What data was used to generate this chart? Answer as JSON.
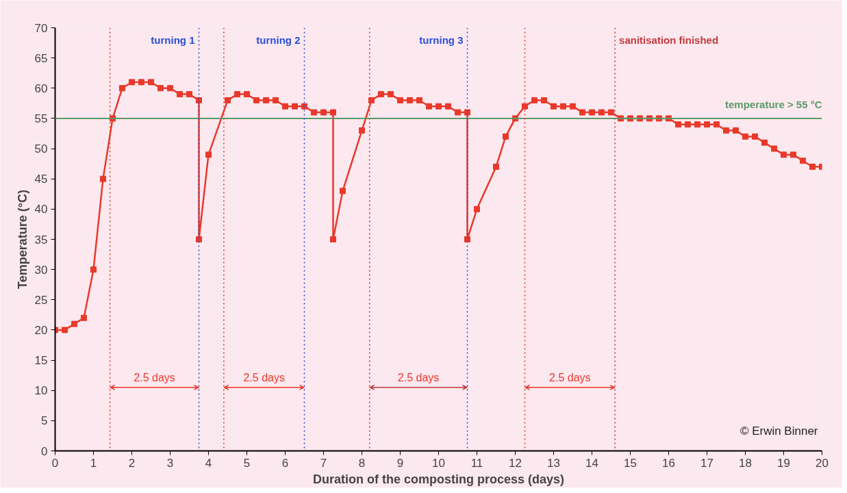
{
  "chart_data": {
    "type": "line",
    "xlabel": "Duration of the composting process (days)",
    "ylabel": "Temperature (°C)",
    "x": [
      0,
      0.25,
      0.5,
      0.75,
      1,
      1.25,
      1.5,
      1.75,
      2,
      2.25,
      2.5,
      2.75,
      3,
      3.25,
      3.5,
      3.75,
      3.75,
      4,
      4.5,
      4.75,
      5,
      5.25,
      5.5,
      5.75,
      6,
      6.25,
      6.5,
      6.75,
      7,
      7.25,
      7.25,
      7.5,
      8,
      8.25,
      8.5,
      8.75,
      9,
      9.25,
      9.5,
      9.75,
      10,
      10.25,
      10.5,
      10.75,
      10.75,
      11,
      11.5,
      11.75,
      12,
      12.25,
      12.5,
      12.75,
      13,
      13.25,
      13.5,
      13.75,
      14,
      14.25,
      14.5,
      14.75,
      15,
      15.25,
      15.5,
      15.75,
      16,
      16.25,
      16.5,
      16.75,
      17,
      17.25,
      17.5,
      17.75,
      18,
      18.25,
      18.5,
      18.75,
      19,
      19.25,
      19.5,
      19.75,
      20
    ],
    "series": [
      {
        "color": "#e8392b",
        "values": [
          20,
          20,
          21,
          22,
          30,
          45,
          55,
          60,
          61,
          61,
          61,
          60,
          60,
          59,
          59,
          58,
          35,
          49,
          58,
          59,
          59,
          58,
          58,
          58,
          57,
          57,
          57,
          56,
          56,
          56,
          35,
          43,
          53,
          58,
          59,
          59,
          58,
          58,
          58,
          57,
          57,
          57,
          56,
          56,
          35,
          40,
          47,
          52,
          55,
          57,
          58,
          58,
          57,
          57,
          57,
          56,
          56,
          56,
          56,
          55,
          55,
          55,
          55,
          55,
          55,
          54,
          54,
          54,
          54,
          54,
          53,
          53,
          52,
          52,
          51,
          50,
          49,
          49,
          48,
          47,
          47
        ]
      }
    ],
    "xlim": [
      0,
      20
    ],
    "xticks": [
      0,
      1,
      2,
      3,
      4,
      5,
      6,
      7,
      8,
      9,
      10,
      11,
      12,
      13,
      14,
      15,
      16,
      17,
      18,
      19,
      20
    ],
    "ylim": [
      0,
      70
    ],
    "yticks": [
      0,
      5,
      10,
      15,
      20,
      25,
      30,
      35,
      40,
      45,
      50,
      55,
      60,
      65,
      70
    ],
    "marker": "square",
    "line_style": "solid",
    "grid": false,
    "ref_lines": [
      {
        "axis": "y",
        "value": 55,
        "label": "temperature > 55 °C",
        "color": "#5a9a6a",
        "line_style": "solid"
      },
      {
        "axis": "x",
        "value": 1.43,
        "label": null,
        "color": "#e8392b",
        "line_style": "dotted"
      },
      {
        "axis": "x",
        "value": 3.75,
        "label": "turning 1",
        "color": "#2b4fd8",
        "line_style": "dotted"
      },
      {
        "axis": "x",
        "value": 4.4,
        "label": null,
        "color": "#e8392b",
        "line_style": "dotted"
      },
      {
        "axis": "x",
        "value": 6.5,
        "label": "turning 2",
        "color": "#2b4fd8",
        "line_style": "dotted"
      },
      {
        "axis": "x",
        "value": 8.2,
        "label": null,
        "color": "#c0393b",
        "line_style": "dotted"
      },
      {
        "axis": "x",
        "value": 10.75,
        "label": "turning 3",
        "color": "#2b4fd8",
        "line_style": "dotted"
      },
      {
        "axis": "x",
        "value": 12.25,
        "label": null,
        "color": "#e8392b",
        "line_style": "dotted"
      },
      {
        "axis": "x",
        "value": 14.6,
        "label": "sanitisation finished",
        "color": "#c0393b",
        "line_style": "dotted"
      }
    ],
    "annotations": [
      "2.5 days",
      "2.5 days",
      "2.5 days",
      "2.5 days",
      "© Erwin Binner"
    ]
  }
}
